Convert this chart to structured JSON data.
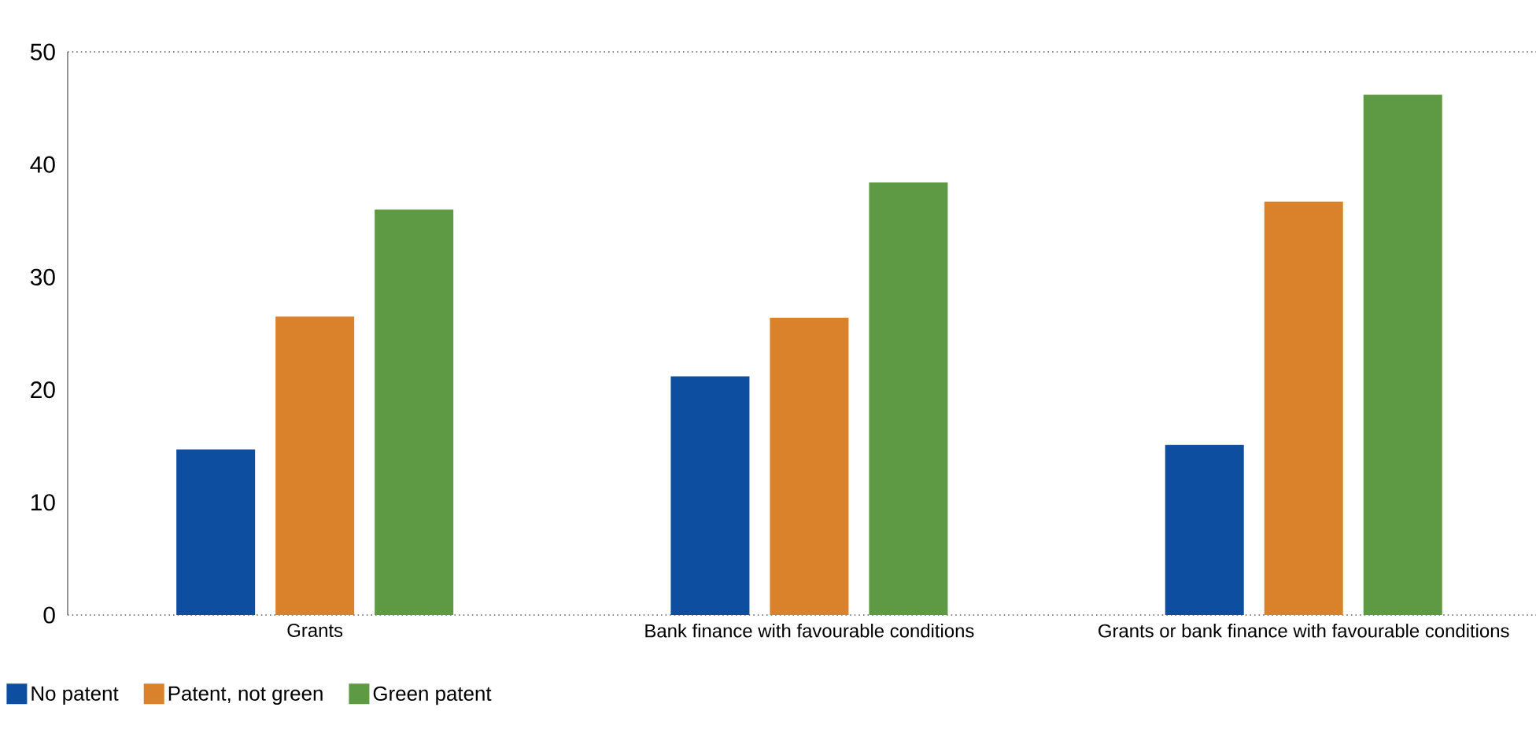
{
  "chart_data": {
    "type": "bar",
    "categories": [
      "Grants",
      "Bank finance with favourable conditions",
      "Grants or bank finance with favourable conditions"
    ],
    "series": [
      {
        "name": "No patent",
        "color": "#0d4ea1",
        "values": [
          14.7,
          21.2,
          15.1
        ]
      },
      {
        "name": "Patent, not green",
        "color": "#d9822b",
        "values": [
          26.5,
          26.4,
          36.7
        ]
      },
      {
        "name": "Green patent",
        "color": "#5e9a44",
        "values": [
          36.0,
          38.4,
          46.2
        ]
      }
    ],
    "ylim": [
      0,
      50
    ],
    "yticks": [
      0,
      10,
      20,
      30,
      40,
      50
    ],
    "legend": "bottom left"
  }
}
